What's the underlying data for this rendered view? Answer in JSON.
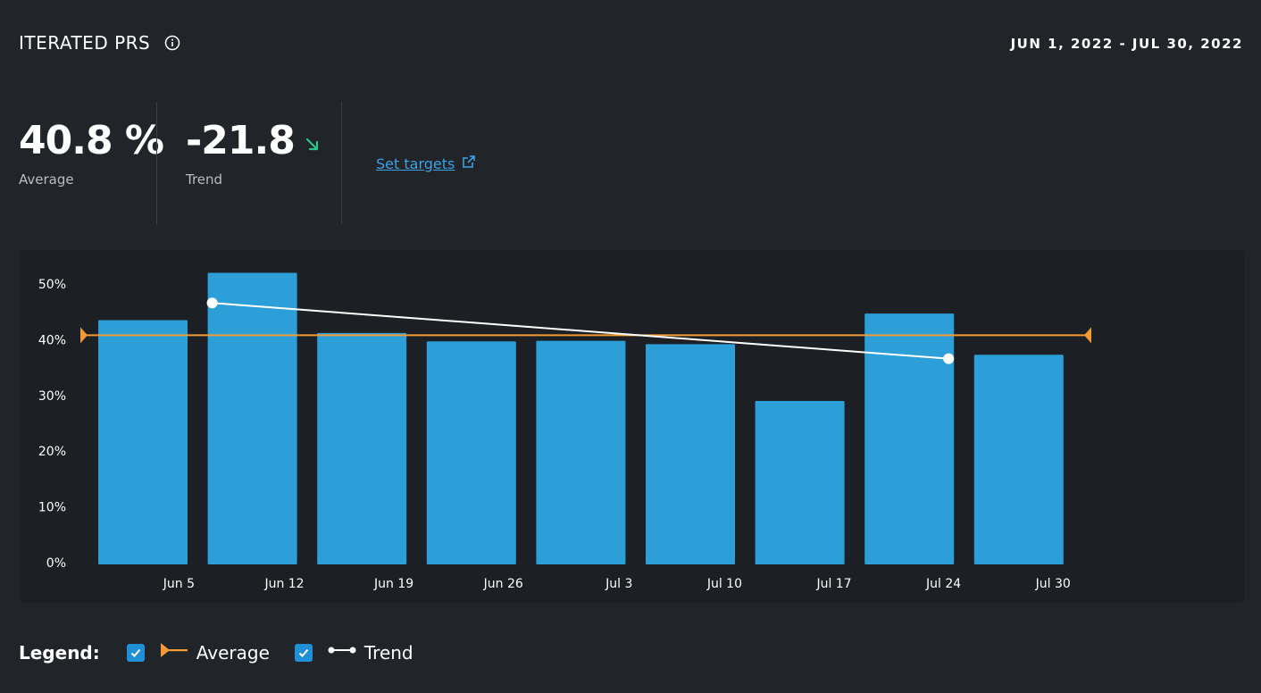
{
  "header": {
    "title": "ITERATED PRS",
    "date_range": "JUN 1, 2022 - JUL 30, 2022"
  },
  "stats": {
    "average_value": "40.8 %",
    "average_label": "Average",
    "trend_value": "-21.8",
    "trend_label": "Trend",
    "trend_direction": "down"
  },
  "links": {
    "set_targets": "Set targets"
  },
  "colors": {
    "bar": "#2d9fd8",
    "average_line": "#f39a35",
    "trend_line": "#ffffff",
    "trend_arrow": "#2fc28a",
    "link": "#3aa3e4"
  },
  "legend": {
    "title": "Legend:",
    "average_label": "Average",
    "trend_label": "Trend",
    "average_checked": true,
    "trend_checked": true
  },
  "chart_data": {
    "type": "bar",
    "x_tick_labels": [
      "Jun 5",
      "Jun 12",
      "Jun 19",
      "Jun 26",
      "Jul 3",
      "Jul 10",
      "Jul 17",
      "Jul 24",
      "Jul 30"
    ],
    "values": [
      43.5,
      52,
      41.2,
      39.7,
      39.8,
      39.2,
      29,
      44.7,
      37.3
    ],
    "y_ticks": [
      "0%",
      "10%",
      "20%",
      "30%",
      "40%",
      "50%"
    ],
    "ylim": [
      0,
      50
    ],
    "average": 40.8,
    "trend": {
      "start_bar": 1,
      "start_value": 46.6,
      "end_bar": 7,
      "end_value": 36.6
    },
    "grid": false
  }
}
